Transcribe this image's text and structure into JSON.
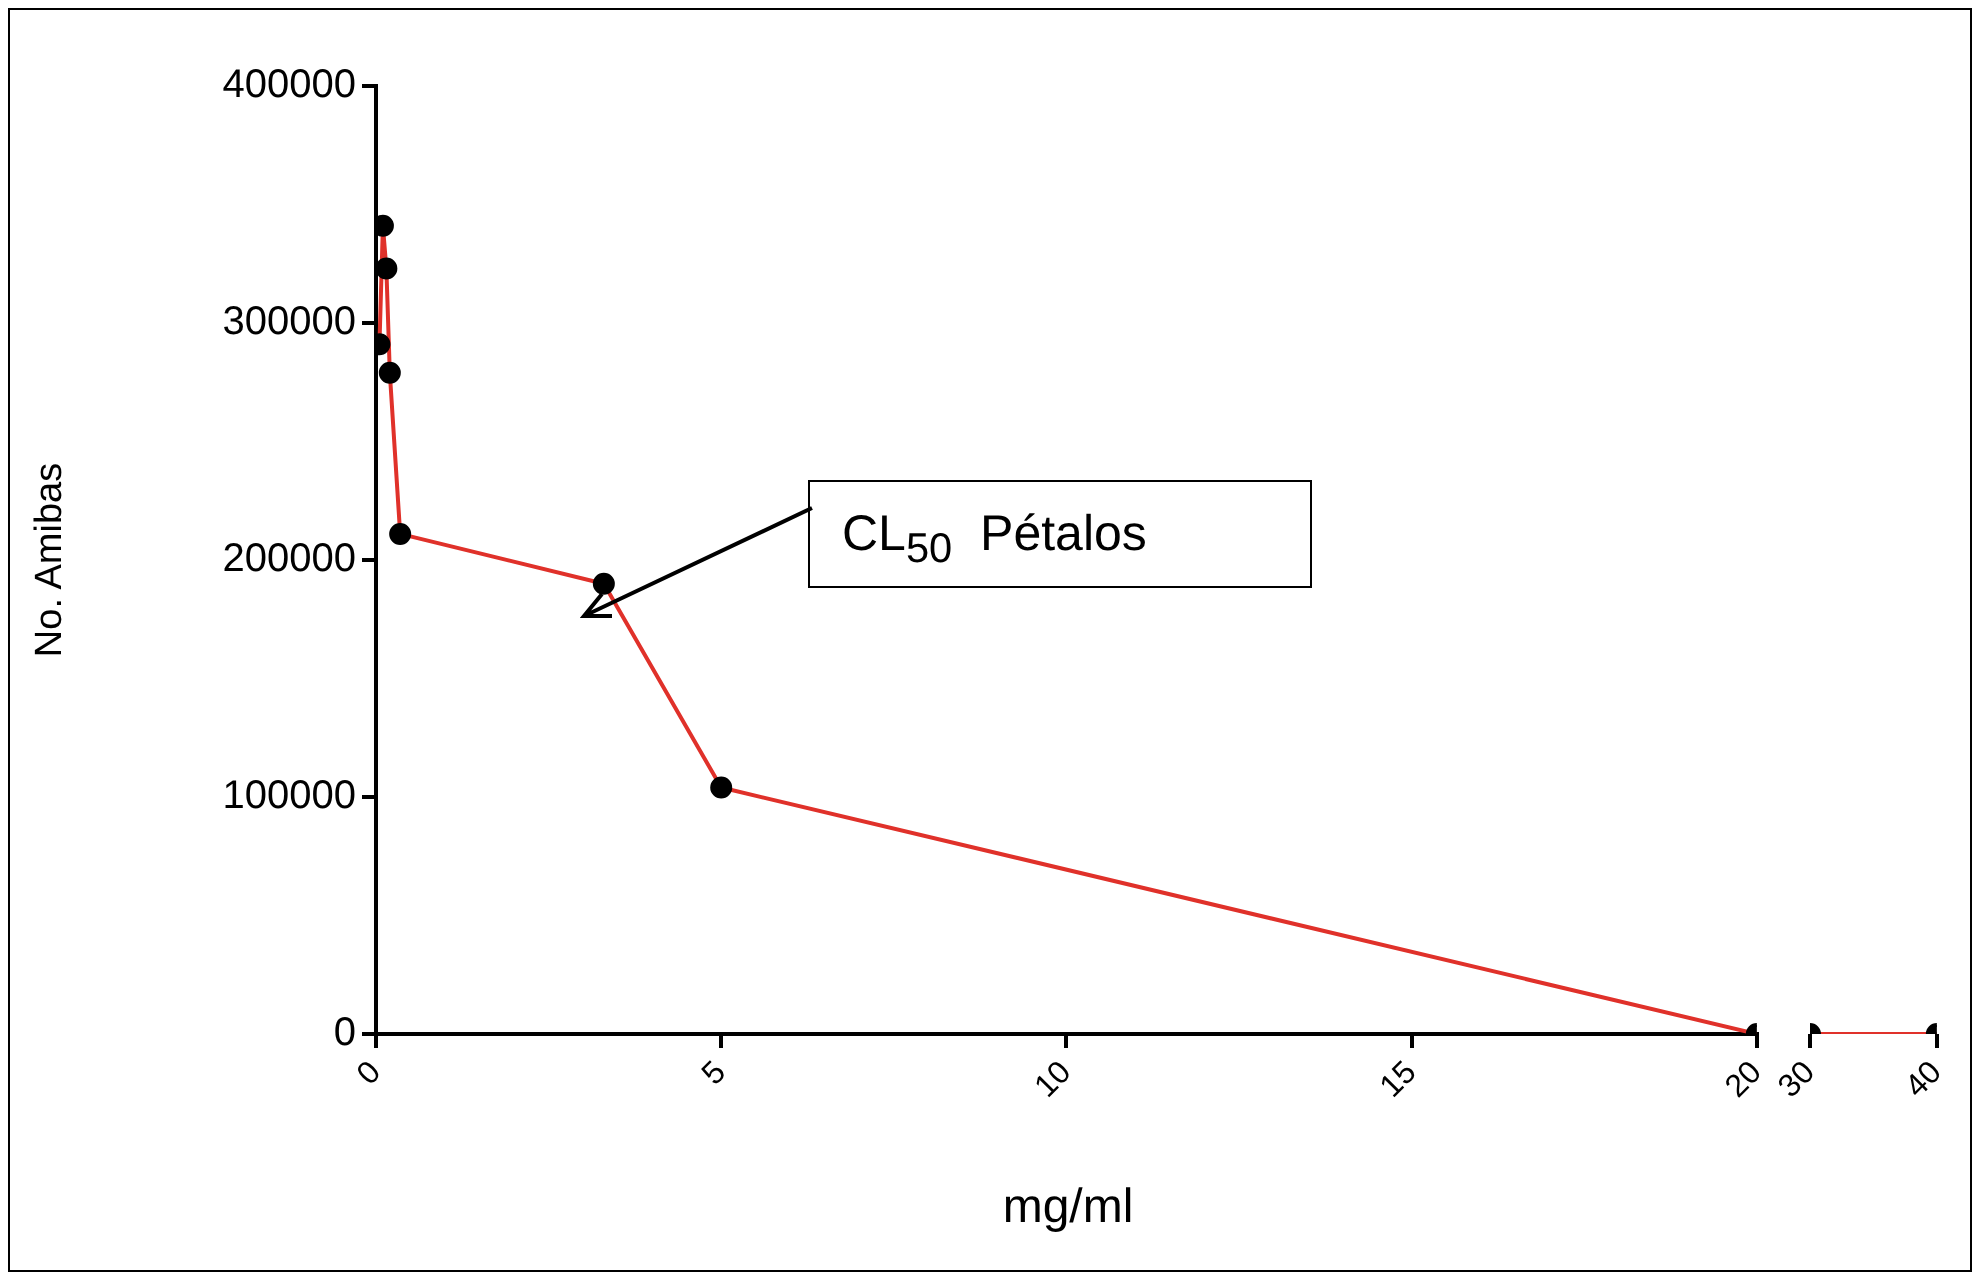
{
  "chart_data": [
    {
      "type": "line",
      "xlabel": "mg/ml",
      "ylabel": "No. Amibas",
      "x": [
        0.05,
        0.1,
        0.15,
        0.2,
        0.35,
        3.3,
        5,
        20
      ],
      "series": [
        {
          "color": "#e0312a",
          "values": [
            291000,
            341000,
            323000,
            279000,
            211000,
            190000,
            104000,
            0
          ]
        }
      ],
      "xlim": [
        0,
        20
      ],
      "xticks": [
        0,
        5,
        10,
        15,
        20
      ],
      "ylim": [
        0,
        400000
      ],
      "yticks": [
        0,
        100000,
        200000,
        300000,
        400000
      ],
      "marker": "circle",
      "grid": false,
      "legend": false,
      "annotations": [
        "CL$_{50}$  Pétalos"
      ]
    },
    {
      "type": "line",
      "x": [
        30,
        40
      ],
      "series": [
        {
          "color": "#e0312a",
          "values": [
            0,
            0
          ]
        }
      ],
      "xlim": [
        30,
        40
      ],
      "xticks": [
        30,
        40
      ],
      "ylim": [
        0,
        400000
      ],
      "tick_labels": "x",
      "marker": "circle",
      "grid": false,
      "legend": false
    }
  ]
}
